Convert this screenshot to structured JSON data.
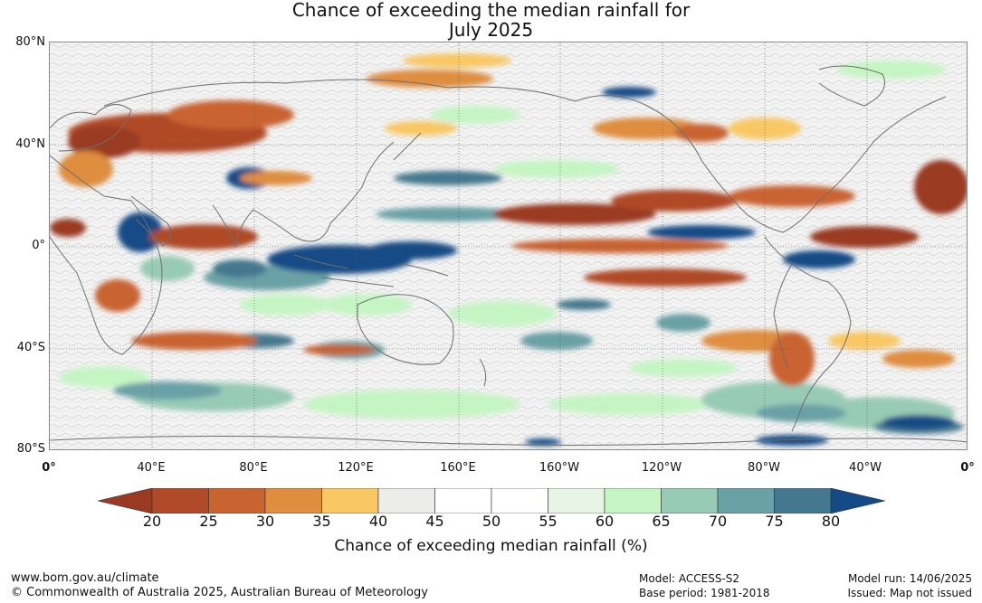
{
  "title": {
    "line1": "Chance of exceeding the median rainfall for",
    "line2": "July 2025"
  },
  "map": {
    "latitude_labels": [
      "80°N",
      "40°N",
      "0°",
      "40°S",
      "80°S"
    ],
    "longitude_labels": [
      "0°",
      "40°E",
      "80°E",
      "120°E",
      "160°E",
      "160°W",
      "120°W",
      "80°W",
      "40°W",
      "0°"
    ],
    "projection": "equirectangular, 0° to 360° longitude",
    "regions_below_median": [
      "central Asia",
      "northern Indian Ocean",
      "equatorial eastern Pacific",
      "Caribbean and tropical Atlantic",
      "southern Africa",
      "southern Indian Ocean",
      "southern South America"
    ],
    "regions_above_median": [
      "Maritime Continent and Indonesia",
      "equatorial Indian Ocean",
      "central tropical Pacific",
      "Southern Ocean",
      "South Atlantic"
    ]
  },
  "colorbar": {
    "colors": [
      "#9a3a22",
      "#b04a28",
      "#c96330",
      "#df8e40",
      "#f9c865",
      "#ececea",
      "#ffffff",
      "#ffffff",
      "#e8f5e6",
      "#c6f5c4",
      "#98cbb5",
      "#6aa1a6",
      "#45788e",
      "#134b86"
    ],
    "labels": [
      "20",
      "25",
      "30",
      "35",
      "40",
      "45",
      "50",
      "55",
      "60",
      "65",
      "70",
      "75",
      "80"
    ],
    "title": "Chance of exceeding median rainfall (%)"
  },
  "footer": {
    "website": "www.bom.gov.au/climate",
    "copyright": "© Commonwealth of Australia 2025, Australian Bureau of Meteorology",
    "model": "Model: ACCESS-S2",
    "base_period": "Base period: 1981-2018",
    "model_run": "Model run: 14/06/2025",
    "issued": "Issued: Map not issued"
  }
}
